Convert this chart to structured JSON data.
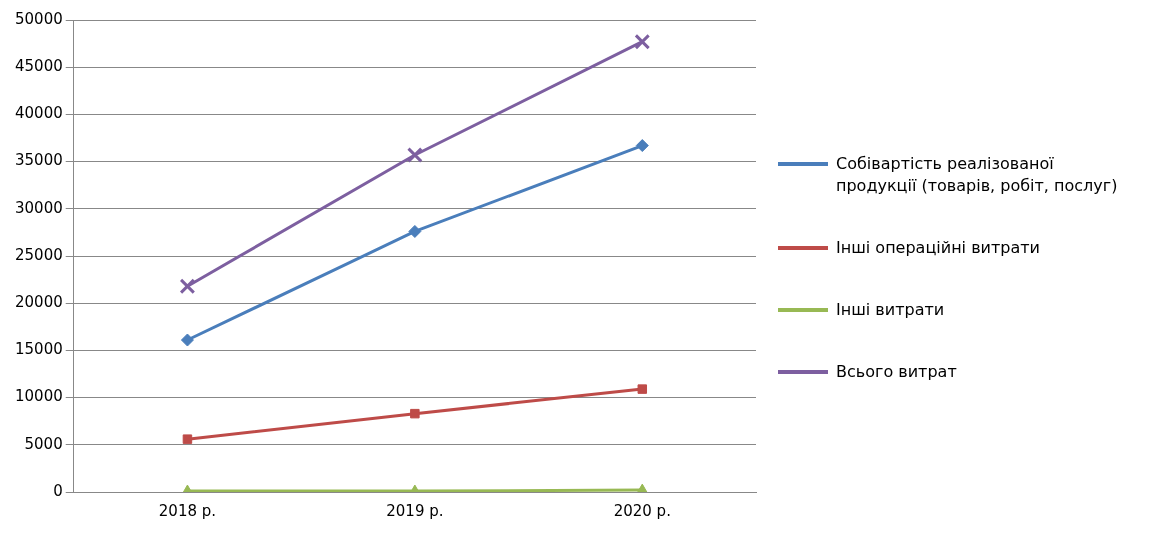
{
  "chart_data": {
    "type": "line",
    "categories": [
      "2018 р.",
      "2019 р.",
      "2020 р."
    ],
    "series": [
      {
        "name": "Собівартість реалізованої продукції (товарів, робіт, послуг)",
        "color": "#4a7ebb",
        "marker": "diamond",
        "values": [
          16100,
          27600,
          36700
        ]
      },
      {
        "name": "Інші операційні витрати",
        "color": "#be4b48",
        "marker": "square",
        "values": [
          5600,
          8300,
          10900
        ]
      },
      {
        "name": "Інші витрати",
        "color": "#98b954",
        "marker": "triangle",
        "values": [
          100,
          100,
          200
        ]
      },
      {
        "name": "Всього витрат",
        "color": "#7d5fa0",
        "marker": "cross",
        "values": [
          21800,
          35700,
          47700
        ]
      }
    ],
    "ylim": [
      0,
      50000
    ],
    "yticks": [
      0,
      5000,
      10000,
      15000,
      20000,
      25000,
      30000,
      35000,
      40000,
      45000,
      50000
    ],
    "grid": "y",
    "legend": "right"
  }
}
